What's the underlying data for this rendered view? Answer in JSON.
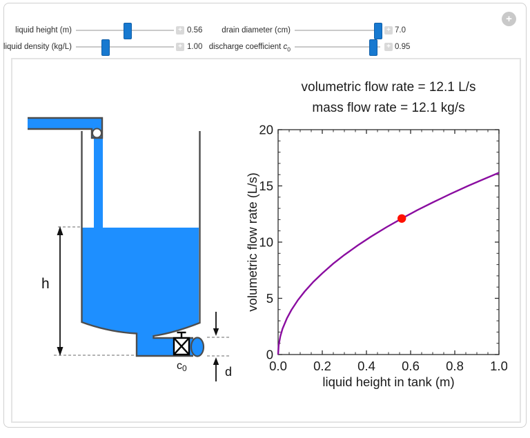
{
  "header": {
    "add_control_icon": "+"
  },
  "controls": {
    "liquid_height": {
      "label": "liquid height (m)",
      "value": "0.56",
      "plus": "+"
    },
    "liquid_density": {
      "label": "liquid density (kg/L)",
      "value": "1.00",
      "plus": "+"
    },
    "drain_diameter": {
      "label": "drain diameter (cm)",
      "value": "7.0",
      "plus": "+"
    },
    "discharge_coefficient": {
      "label": "discharge coefficient ",
      "var": "c",
      "sub": "0",
      "value": "0.95",
      "plus": "+"
    }
  },
  "diagram": {
    "h_label": "h",
    "c_var": "c",
    "c_sub": "0",
    "d_label": "d"
  },
  "colors": {
    "liquid_blue": "#1e8fff",
    "slider_blue": "#1779d0",
    "curve_purple": "#8a0da0",
    "point_red": "#ff1000",
    "outline_gray": "#4d4d4d"
  },
  "chart_data": {
    "type": "line",
    "title": "volumetric flow rate = 12.1 L/s",
    "subtitle": "mass flow rate = 12.1 kg/s",
    "xlabel": "liquid height in tank (m)",
    "ylabel": "volumetric flow rate (L/s)",
    "xlim": [
      0,
      1
    ],
    "ylim": [
      0,
      20
    ],
    "grid": false,
    "legend": "none",
    "frame_color": "#2b2b2b",
    "tick_label_color": "#1a1a1a",
    "x_ticks": {
      "values": [
        0,
        0.2,
        0.4,
        0.6,
        0.8,
        1.0
      ],
      "labels": [
        "0.0",
        "0.2",
        "0.4",
        "0.6",
        "0.8",
        "1.0"
      ],
      "minor_step": 0.05
    },
    "y_ticks": {
      "values": [
        0,
        5,
        10,
        15,
        20
      ],
      "labels": [
        "0",
        "5",
        "10",
        "15",
        "20"
      ],
      "minor_step": 1
    },
    "series": [
      {
        "name": "volumetric flow rate vs liquid height",
        "color": "#8a0da0",
        "x": [
          0,
          0.0025,
          0.01,
          0.02,
          0.04,
          0.06,
          0.09,
          0.12,
          0.16,
          0.2,
          0.25,
          0.3,
          0.36,
          0.42,
          0.49,
          0.56,
          0.63,
          0.7,
          0.78,
          0.86,
          0.93,
          1.0
        ],
        "y": [
          0,
          0.81,
          1.62,
          2.29,
          3.23,
          3.96,
          4.85,
          5.6,
          6.47,
          7.23,
          8.09,
          8.86,
          9.7,
          10.48,
          11.32,
          12.1,
          12.84,
          13.53,
          14.28,
          15.0,
          15.59,
          16.17
        ]
      }
    ],
    "point": {
      "x": 0.56,
      "y": 12.1,
      "color": "#ff1000"
    }
  }
}
